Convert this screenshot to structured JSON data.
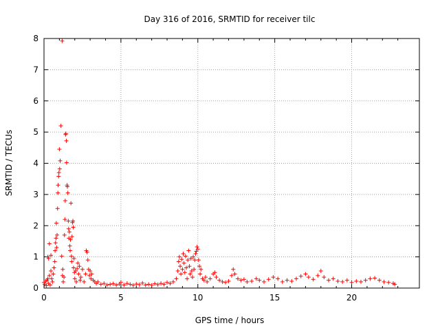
{
  "chart_data": {
    "type": "scatter",
    "title": "Day 316 of 2016, SRMTID for receiver tilc",
    "xlabel": "GPS time / hours",
    "ylabel": "SRMTID / TECUs",
    "xlim": [
      0,
      24.4
    ],
    "ylim": [
      0,
      8
    ],
    "x_ticks": [
      0,
      5,
      10,
      15,
      20
    ],
    "y_ticks": [
      0,
      1,
      2,
      3,
      4,
      5,
      6,
      7,
      8
    ],
    "x_tick_labels": [
      "0",
      "5",
      "10",
      "15",
      "20"
    ],
    "y_tick_labels": [
      "0",
      "1",
      "2",
      "3",
      "4",
      "5",
      "6",
      "7",
      "8"
    ],
    "grid": true,
    "marker": "+",
    "series_color": "#ff0000",
    "series": [
      {
        "name": "SRMTID",
        "points": [
          [
            0.0,
            0.18
          ],
          [
            0.05,
            0.12
          ],
          [
            0.1,
            0.22
          ],
          [
            0.15,
            0.08
          ],
          [
            0.2,
            0.25
          ],
          [
            0.25,
            0.3
          ],
          [
            0.3,
            0.15
          ],
          [
            0.35,
            0.4
          ],
          [
            0.4,
            0.1
          ],
          [
            0.45,
            0.55
          ],
          [
            0.25,
            1.0
          ],
          [
            0.3,
            0.95
          ],
          [
            0.35,
            1.42
          ],
          [
            0.45,
            1.05
          ],
          [
            0.5,
            0.3
          ],
          [
            0.55,
            0.2
          ],
          [
            0.6,
            0.45
          ],
          [
            0.65,
            0.65
          ],
          [
            0.7,
            0.85
          ],
          [
            0.72,
            1.2
          ],
          [
            0.75,
            1.45
          ],
          [
            0.78,
            1.6
          ],
          [
            0.8,
            2.08
          ],
          [
            0.82,
            1.3
          ],
          [
            0.85,
            1.7
          ],
          [
            0.88,
            2.55
          ],
          [
            0.9,
            3.05
          ],
          [
            0.92,
            3.3
          ],
          [
            0.95,
            3.58
          ],
          [
            0.97,
            3.7
          ],
          [
            1.0,
            4.45
          ],
          [
            1.02,
            3.82
          ],
          [
            1.05,
            4.08
          ],
          [
            1.1,
            5.2
          ],
          [
            1.15,
            1.02
          ],
          [
            1.18,
            7.92
          ],
          [
            1.2,
            0.4
          ],
          [
            1.22,
            0.6
          ],
          [
            1.25,
            0.2
          ],
          [
            1.3,
            0.35
          ],
          [
            1.33,
            1.7
          ],
          [
            1.36,
            2.2
          ],
          [
            1.38,
            2.8
          ],
          [
            1.4,
            4.92
          ],
          [
            1.42,
            4.95
          ],
          [
            1.45,
            4.72
          ],
          [
            1.47,
            4.02
          ],
          [
            1.5,
            3.3
          ],
          [
            1.52,
            3.25
          ],
          [
            1.55,
            3.05
          ],
          [
            1.58,
            2.15
          ],
          [
            1.6,
            1.9
          ],
          [
            1.62,
            1.6
          ],
          [
            1.65,
            1.8
          ],
          [
            1.68,
            1.35
          ],
          [
            1.7,
            1.2
          ],
          [
            1.72,
            1.55
          ],
          [
            1.75,
            2.72
          ],
          [
            1.78,
            1.02
          ],
          [
            1.8,
            0.85
          ],
          [
            1.82,
            1.65
          ],
          [
            1.85,
            2.1
          ],
          [
            1.88,
            2.15
          ],
          [
            1.9,
            1.95
          ],
          [
            1.92,
            0.65
          ],
          [
            1.95,
            0.95
          ],
          [
            1.98,
            0.5
          ],
          [
            2.0,
            0.3
          ],
          [
            2.05,
            0.55
          ],
          [
            2.1,
            0.2
          ],
          [
            2.15,
            0.62
          ],
          [
            2.2,
            0.8
          ],
          [
            2.25,
            0.45
          ],
          [
            2.3,
            0.7
          ],
          [
            2.35,
            0.25
          ],
          [
            2.4,
            0.35
          ],
          [
            2.5,
            0.6
          ],
          [
            2.6,
            0.2
          ],
          [
            2.7,
            0.45
          ],
          [
            2.75,
            1.2
          ],
          [
            2.8,
            1.15
          ],
          [
            2.85,
            0.9
          ],
          [
            2.9,
            0.6
          ],
          [
            2.95,
            0.4
          ],
          [
            3.0,
            0.55
          ],
          [
            3.05,
            0.3
          ],
          [
            3.1,
            0.45
          ],
          [
            3.2,
            0.25
          ],
          [
            3.3,
            0.2
          ],
          [
            3.4,
            0.15
          ],
          [
            3.5,
            0.2
          ],
          [
            3.7,
            0.12
          ],
          [
            3.9,
            0.15
          ],
          [
            4.1,
            0.1
          ],
          [
            4.3,
            0.12
          ],
          [
            4.5,
            0.14
          ],
          [
            4.7,
            0.1
          ],
          [
            4.9,
            0.13
          ],
          [
            5.0,
            0.18
          ],
          [
            5.2,
            0.1
          ],
          [
            5.4,
            0.15
          ],
          [
            5.6,
            0.12
          ],
          [
            5.8,
            0.09
          ],
          [
            6.0,
            0.13
          ],
          [
            6.2,
            0.11
          ],
          [
            6.4,
            0.16
          ],
          [
            6.6,
            0.1
          ],
          [
            6.8,
            0.12
          ],
          [
            7.0,
            0.09
          ],
          [
            7.2,
            0.14
          ],
          [
            7.4,
            0.11
          ],
          [
            7.6,
            0.15
          ],
          [
            7.8,
            0.12
          ],
          [
            8.0,
            0.18
          ],
          [
            8.2,
            0.15
          ],
          [
            8.4,
            0.2
          ],
          [
            8.6,
            0.3
          ],
          [
            8.7,
            0.55
          ],
          [
            8.75,
            0.85
          ],
          [
            8.8,
            1.0
          ],
          [
            8.85,
            0.7
          ],
          [
            8.9,
            0.45
          ],
          [
            8.95,
            0.92
          ],
          [
            9.0,
            0.6
          ],
          [
            9.05,
            1.1
          ],
          [
            9.1,
            0.8
          ],
          [
            9.15,
            0.5
          ],
          [
            9.2,
            1.02
          ],
          [
            9.25,
            0.65
          ],
          [
            9.3,
            0.3
          ],
          [
            9.35,
            0.9
          ],
          [
            9.4,
            1.2
          ],
          [
            9.45,
            0.7
          ],
          [
            9.5,
            0.45
          ],
          [
            9.55,
            0.95
          ],
          [
            9.6,
            0.55
          ],
          [
            9.65,
            0.35
          ],
          [
            9.7,
            1.0
          ],
          [
            9.75,
            0.6
          ],
          [
            9.8,
            0.9
          ],
          [
            9.85,
            1.1
          ],
          [
            9.9,
            1.18
          ],
          [
            9.95,
            1.32
          ],
          [
            10.0,
            1.25
          ],
          [
            10.05,
            0.9
          ],
          [
            10.1,
            0.7
          ],
          [
            10.15,
            0.45
          ],
          [
            10.2,
            0.6
          ],
          [
            10.3,
            0.3
          ],
          [
            10.4,
            0.25
          ],
          [
            10.5,
            0.35
          ],
          [
            10.6,
            0.2
          ],
          [
            10.8,
            0.3
          ],
          [
            11.0,
            0.45
          ],
          [
            11.1,
            0.5
          ],
          [
            11.2,
            0.35
          ],
          [
            11.4,
            0.25
          ],
          [
            11.6,
            0.2
          ],
          [
            11.8,
            0.18
          ],
          [
            12.0,
            0.22
          ],
          [
            12.2,
            0.4
          ],
          [
            12.3,
            0.6
          ],
          [
            12.4,
            0.45
          ],
          [
            12.6,
            0.3
          ],
          [
            12.8,
            0.25
          ],
          [
            13.0,
            0.28
          ],
          [
            13.2,
            0.2
          ],
          [
            13.5,
            0.22
          ],
          [
            13.8,
            0.3
          ],
          [
            14.0,
            0.25
          ],
          [
            14.3,
            0.2
          ],
          [
            14.6,
            0.28
          ],
          [
            14.9,
            0.35
          ],
          [
            15.2,
            0.3
          ],
          [
            15.5,
            0.2
          ],
          [
            15.8,
            0.25
          ],
          [
            16.1,
            0.22
          ],
          [
            16.4,
            0.3
          ],
          [
            16.7,
            0.38
          ],
          [
            17.0,
            0.45
          ],
          [
            17.2,
            0.35
          ],
          [
            17.5,
            0.28
          ],
          [
            17.8,
            0.4
          ],
          [
            18.0,
            0.55
          ],
          [
            18.2,
            0.35
          ],
          [
            18.5,
            0.25
          ],
          [
            18.8,
            0.3
          ],
          [
            19.1,
            0.22
          ],
          [
            19.4,
            0.2
          ],
          [
            19.7,
            0.25
          ],
          [
            20.0,
            0.18
          ],
          [
            20.3,
            0.22
          ],
          [
            20.6,
            0.2
          ],
          [
            20.9,
            0.25
          ],
          [
            21.2,
            0.3
          ],
          [
            21.5,
            0.32
          ],
          [
            21.8,
            0.25
          ],
          [
            22.1,
            0.2
          ],
          [
            22.4,
            0.18
          ],
          [
            22.7,
            0.15
          ],
          [
            22.8,
            0.12
          ]
        ]
      }
    ]
  }
}
